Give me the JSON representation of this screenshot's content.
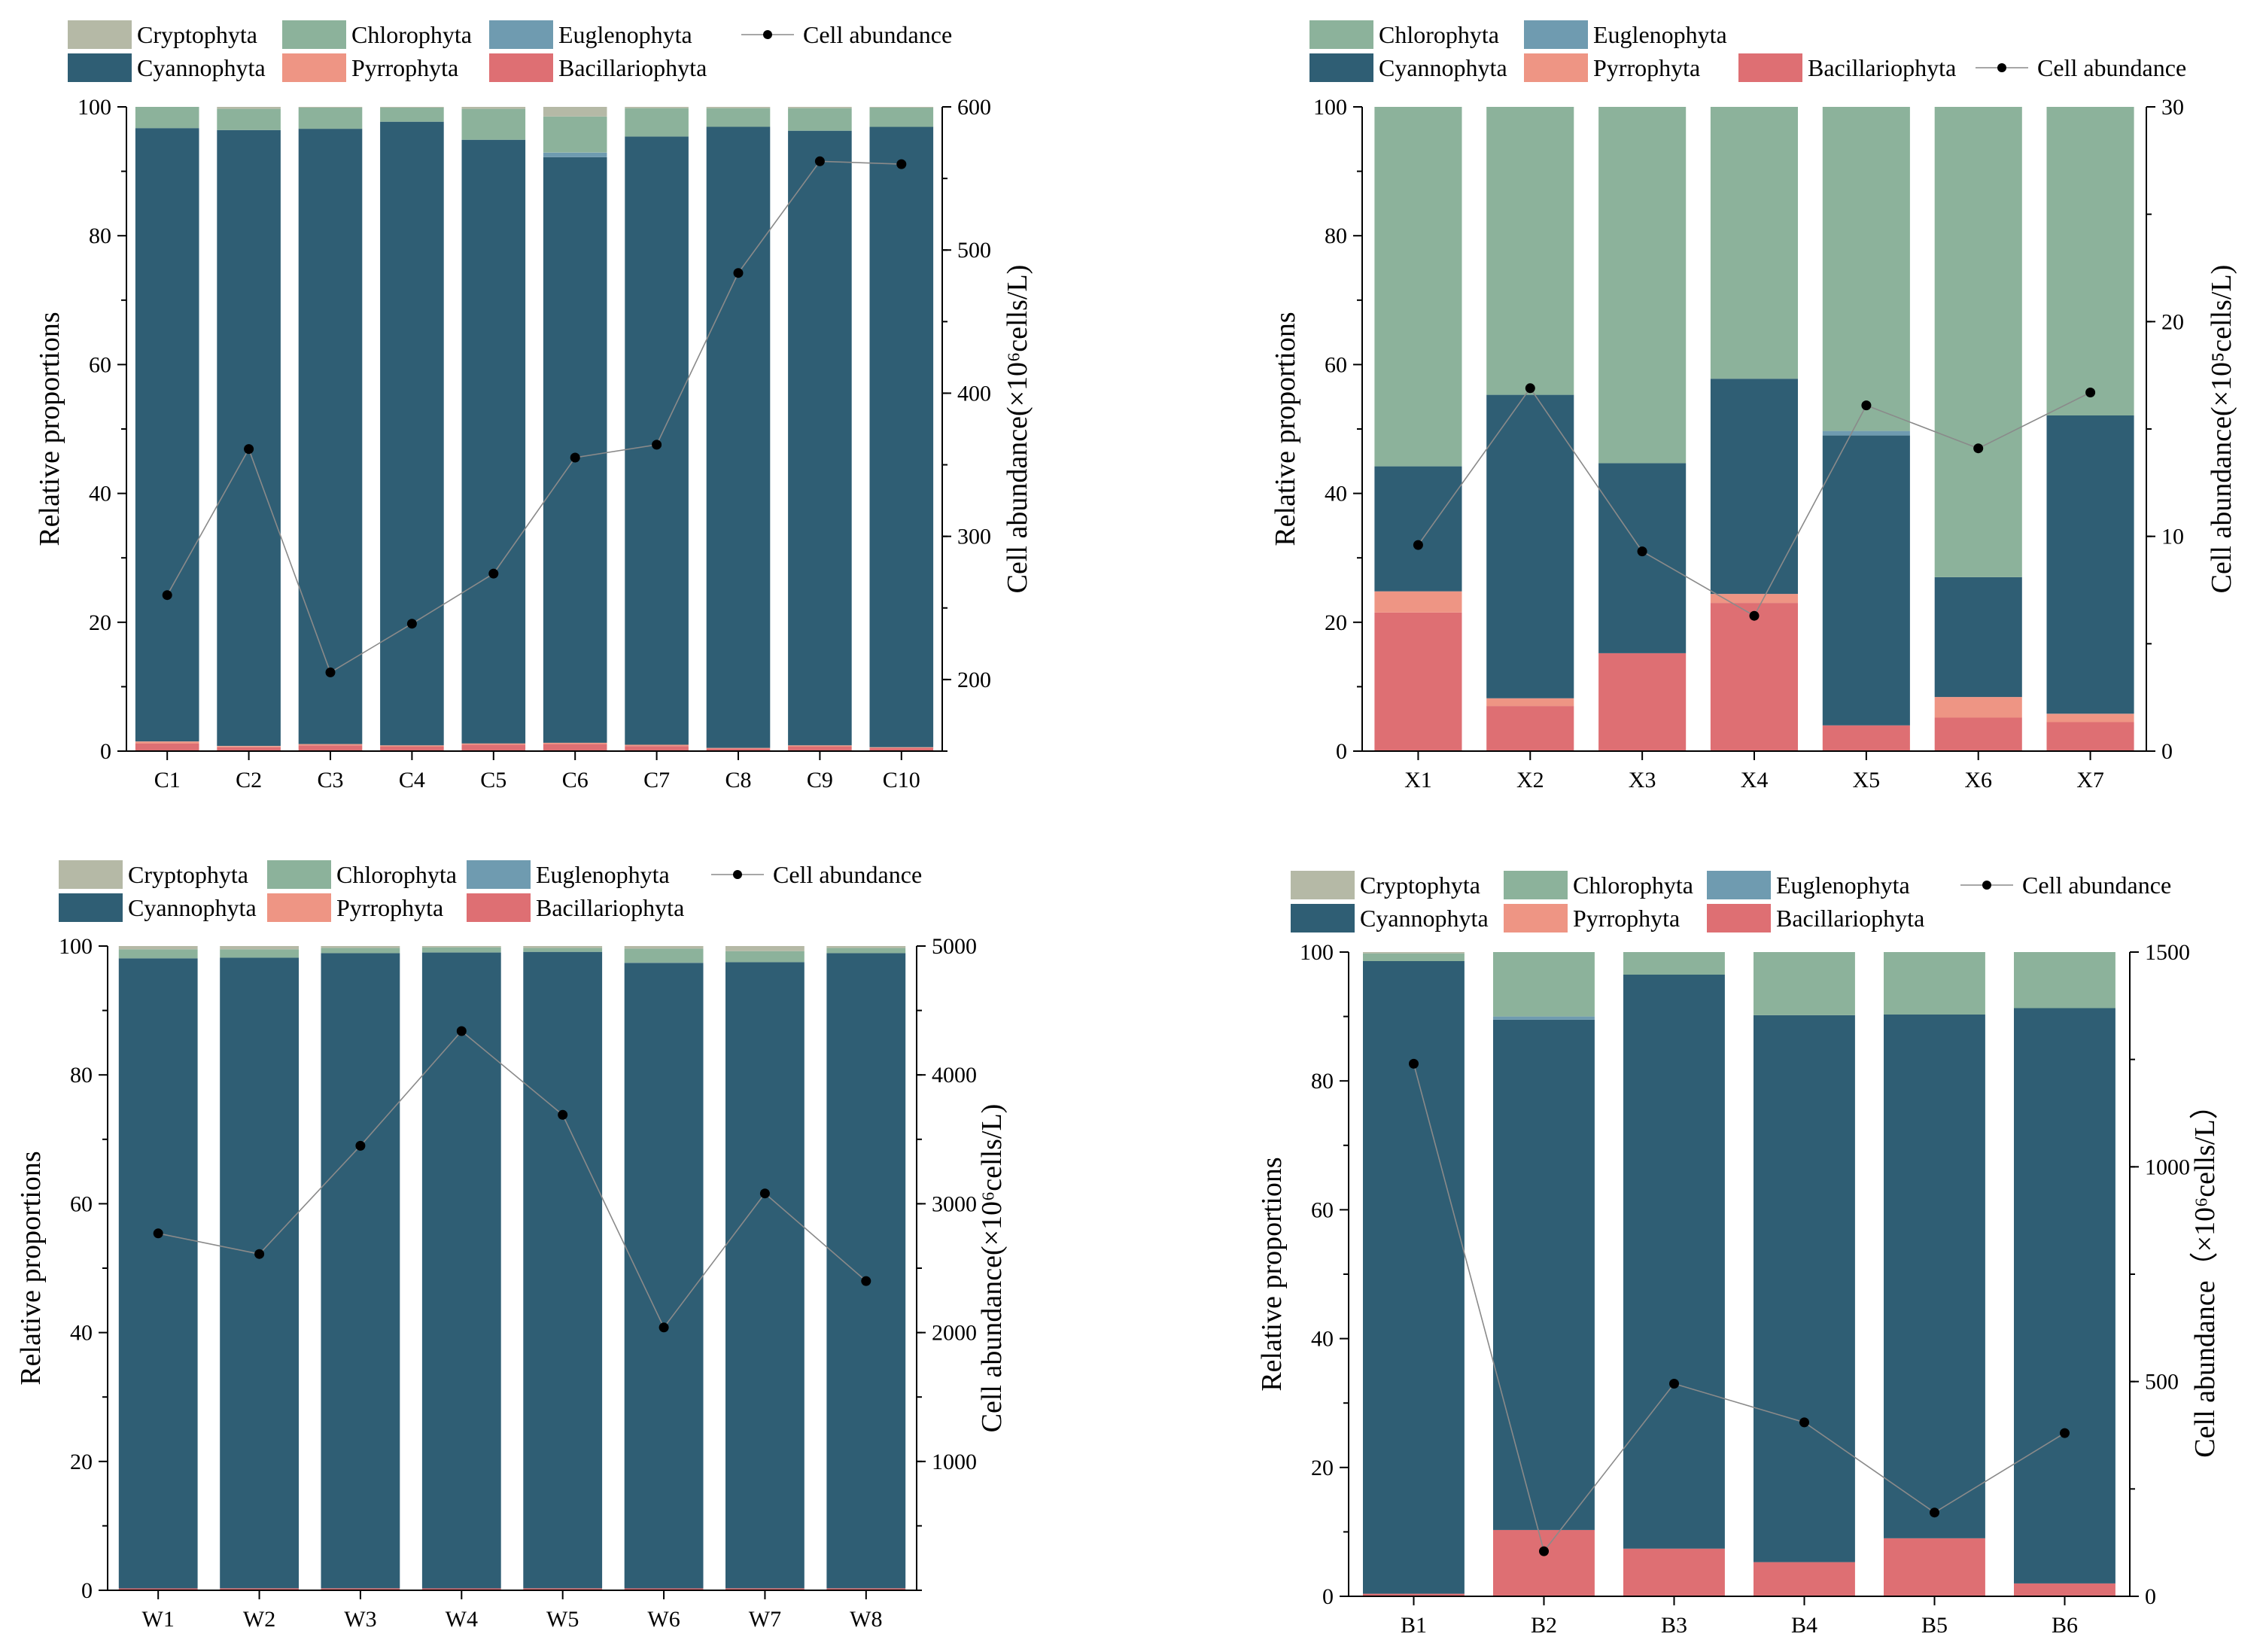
{
  "colors": {
    "Cryptophyta": "#b5b9a6",
    "Chlorophyta": "#8cb29b",
    "Euglenophyta": "#6f9bb0",
    "Cyannophyta": "#2f5e74",
    "Pyrrophyta": "#ee9584",
    "Bacillariophyta": "#de6f73",
    "line": "#8a8a8a",
    "marker": "#000000"
  },
  "chart_data": [
    {
      "id": "C",
      "type": "bar",
      "stacked": true,
      "categories": [
        "C1",
        "C2",
        "C3",
        "C4",
        "C5",
        "C6",
        "C7",
        "C8",
        "C9",
        "C10"
      ],
      "series": [
        {
          "name": "Bacillariophyta",
          "values": [
            1.2,
            0.6,
            0.9,
            0.7,
            1.0,
            1.1,
            0.8,
            0.4,
            0.7,
            0.5
          ]
        },
        {
          "name": "Pyrrophyta",
          "values": [
            0.3,
            0.2,
            0.2,
            0.2,
            0.2,
            0.2,
            0.2,
            0.1,
            0.2,
            0.1
          ]
        },
        {
          "name": "Cyannophyta",
          "values": [
            95.2,
            95.6,
            95.5,
            96.8,
            93.7,
            90.9,
            94.4,
            96.4,
            95.4,
            96.3
          ]
        },
        {
          "name": "Euglenophyta",
          "values": [
            0,
            0,
            0,
            0,
            0,
            0.7,
            0,
            0,
            0,
            0
          ]
        },
        {
          "name": "Chlorophyta",
          "values": [
            3.3,
            3.3,
            3.3,
            2.2,
            4.8,
            5.6,
            4.4,
            2.9,
            3.5,
            3.0
          ]
        },
        {
          "name": "Cryptophyta",
          "values": [
            0,
            0.3,
            0.1,
            0.1,
            0.3,
            1.5,
            0.2,
            0.2,
            0.2,
            0.1
          ]
        }
      ],
      "line": {
        "name": "Cell abundance",
        "values": [
          259,
          361,
          205,
          239,
          274,
          355,
          364,
          484,
          562,
          560
        ]
      },
      "ylabel": "Relative proportions",
      "ylim": [
        0,
        100
      ],
      "yticks": [
        "0",
        "20",
        "40",
        "60",
        "80",
        "100"
      ],
      "y2label": "Cell abundance(×10⁶cells/L)",
      "y2lim": [
        150,
        600
      ],
      "y2ticks": [
        "200",
        "300",
        "400",
        "500",
        "600"
      ],
      "legend": [
        [
          "Cryptophyta",
          "Chlorophyta",
          "Euglenophyta",
          "Cell abundance"
        ],
        [
          "Cyannophyta",
          "Pyrrophyta",
          "Bacillariophyta"
        ]
      ]
    },
    {
      "id": "X",
      "type": "bar",
      "stacked": true,
      "categories": [
        "X1",
        "X2",
        "X3",
        "X4",
        "X5",
        "X6",
        "X7"
      ],
      "series": [
        {
          "name": "Bacillariophyta",
          "values": [
            21.5,
            7.0,
            15.2,
            23.0,
            4.0,
            5.2,
            4.5
          ]
        },
        {
          "name": "Pyrrophyta",
          "values": [
            3.3,
            1.2,
            0,
            1.4,
            0,
            3.2,
            1.3
          ]
        },
        {
          "name": "Cyannophyta",
          "values": [
            19.4,
            47.1,
            29.5,
            33.4,
            45.0,
            18.6,
            46.3
          ]
        },
        {
          "name": "Euglenophyta",
          "values": [
            0,
            0,
            0,
            0,
            0.7,
            0,
            0
          ]
        },
        {
          "name": "Chlorophyta",
          "values": [
            55.8,
            44.7,
            55.3,
            42.2,
            50.3,
            73.0,
            47.9
          ]
        },
        {
          "name": "Cryptophyta",
          "values": [
            0,
            0,
            0,
            0,
            0,
            0,
            0
          ]
        }
      ],
      "line": {
        "name": "Cell abundance",
        "values": [
          9.6,
          16.9,
          9.3,
          6.3,
          16.1,
          14.1,
          16.7
        ]
      },
      "ylabel": "Relative proportions",
      "ylim": [
        0,
        100
      ],
      "yticks": [
        "0",
        "20",
        "40",
        "60",
        "80",
        "100"
      ],
      "y2label": "Cell abundance(×10⁵cells/L)",
      "y2lim": [
        0,
        30
      ],
      "y2ticks": [
        "0",
        "10",
        "20",
        "30"
      ],
      "legend": [
        [
          "Chlorophyta",
          "Euglenophyta"
        ],
        [
          "Cyannophyta",
          "Pyrrophyta",
          "Bacillariophyta",
          "Cell abundance"
        ]
      ]
    },
    {
      "id": "W",
      "type": "bar",
      "stacked": true,
      "categories": [
        "W1",
        "W2",
        "W3",
        "W4",
        "W5",
        "W6",
        "W7",
        "W8"
      ],
      "series": [
        {
          "name": "Bacillariophyta",
          "values": [
            0.3,
            0.3,
            0.3,
            0.3,
            0.3,
            0.3,
            0.3,
            0.3
          ]
        },
        {
          "name": "Pyrrophyta",
          "values": [
            0,
            0,
            0,
            0,
            0,
            0,
            0,
            0
          ]
        },
        {
          "name": "Cyannophyta",
          "values": [
            97.8,
            97.9,
            98.6,
            98.7,
            98.8,
            97.1,
            97.2,
            98.6
          ]
        },
        {
          "name": "Euglenophyta",
          "values": [
            0,
            0,
            0,
            0,
            0,
            0,
            0,
            0
          ]
        },
        {
          "name": "Chlorophyta",
          "values": [
            1.4,
            1.3,
            0.8,
            0.8,
            0.6,
            2.2,
            1.7,
            0.8
          ]
        },
        {
          "name": "Cryptophyta",
          "values": [
            0.5,
            0.5,
            0.3,
            0.2,
            0.3,
            0.4,
            0.8,
            0.3
          ]
        }
      ],
      "line": {
        "name": "Cell abundance",
        "values": [
          2770,
          2610,
          3450,
          4340,
          3690,
          2040,
          3080,
          2400
        ]
      },
      "ylabel": "Relative proportions",
      "ylim": [
        0,
        100
      ],
      "yticks": [
        "0",
        "20",
        "40",
        "60",
        "80",
        "100"
      ],
      "y2label": "Cell abundance(×10⁶cells/L)",
      "y2lim": [
        0,
        5000
      ],
      "y2ticks": [
        "1000",
        "2000",
        "3000",
        "4000",
        "5000"
      ],
      "legend": [
        [
          "Cryptophyta",
          "Chlorophyta",
          "Euglenophyta",
          "Cell abundance"
        ],
        [
          "Cyannophyta",
          "Pyrrophyta",
          "Bacillariophyta"
        ]
      ]
    },
    {
      "id": "B",
      "type": "bar",
      "stacked": true,
      "categories": [
        "B1",
        "B2",
        "B3",
        "B4",
        "B5",
        "B6"
      ],
      "series": [
        {
          "name": "Bacillariophyta",
          "values": [
            0.4,
            10.3,
            7.4,
            5.3,
            9.0,
            2.0
          ]
        },
        {
          "name": "Pyrrophyta",
          "values": [
            0,
            0,
            0,
            0,
            0,
            0
          ]
        },
        {
          "name": "Cyannophyta",
          "values": [
            98.2,
            79.2,
            89.1,
            84.9,
            81.3,
            89.3
          ]
        },
        {
          "name": "Euglenophyta",
          "values": [
            0,
            0.5,
            0,
            0,
            0,
            0
          ]
        },
        {
          "name": "Chlorophyta",
          "values": [
            1.2,
            10.0,
            3.5,
            9.8,
            9.7,
            8.7
          ]
        },
        {
          "name": "Cryptophyta",
          "values": [
            0.2,
            0,
            0,
            0,
            0,
            0
          ]
        }
      ],
      "line": {
        "name": "Cell abundance",
        "values": [
          1240,
          105,
          495,
          405,
          195,
          380
        ]
      },
      "ylabel": "Relative proportions",
      "ylim": [
        0,
        100
      ],
      "yticks": [
        "0",
        "20",
        "40",
        "60",
        "80",
        "100"
      ],
      "y2label": "Cell abundance（×10⁶cells/L）",
      "y2lim": [
        0,
        1500
      ],
      "y2ticks": [
        "0",
        "500",
        "1000",
        "1500"
      ],
      "legend": [
        [
          "Cryptophyta",
          "Chlorophyta",
          "Euglenophyta",
          "Cell abundance"
        ],
        [
          "Cyannophyta",
          "Pyrrophyta",
          "Bacillariophyta"
        ]
      ]
    }
  ]
}
